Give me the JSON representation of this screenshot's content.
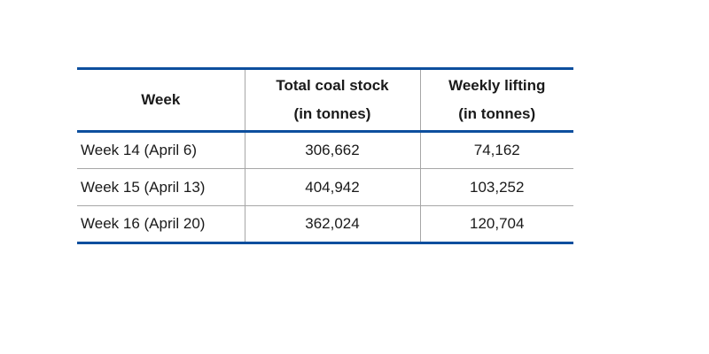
{
  "table": {
    "header": {
      "col1": "Week",
      "col2_line1": "Total coal stock",
      "col2_line2": "(in tonnes)",
      "col3_line1": "Weekly lifting",
      "col3_line2": "(in tonnes)"
    },
    "rows": [
      {
        "week": "Week 14 (April 6)",
        "stock": "306,662",
        "lifting": "74,162"
      },
      {
        "week": "Week 15 (April 13)",
        "stock": "404,942",
        "lifting": "103,252"
      },
      {
        "week": "Week 16 (April 20)",
        "stock": "362,024",
        "lifting": "120,704"
      }
    ],
    "colors": {
      "accent_border": "#0d4f9e",
      "grid_line": "#a6a6a6",
      "text": "#1a1a1a",
      "background": "#ffffff"
    }
  },
  "chart_data": {
    "type": "table",
    "title": "",
    "columns": [
      "Week",
      "Total coal stock (in tonnes)",
      "Weekly lifting (in tonnes)"
    ],
    "rows": [
      [
        "Week 14 (April 6)",
        306662,
        74162
      ],
      [
        "Week 15 (April 13)",
        404942,
        103252
      ],
      [
        "Week 16 (April 20)",
        362024,
        120704
      ]
    ],
    "layout_hints": {
      "header_border_color": "#0d4f9e",
      "row_separator_color": "#a6a6a6",
      "column_alignment": [
        "left",
        "center",
        "center"
      ],
      "header_bold": true
    }
  }
}
